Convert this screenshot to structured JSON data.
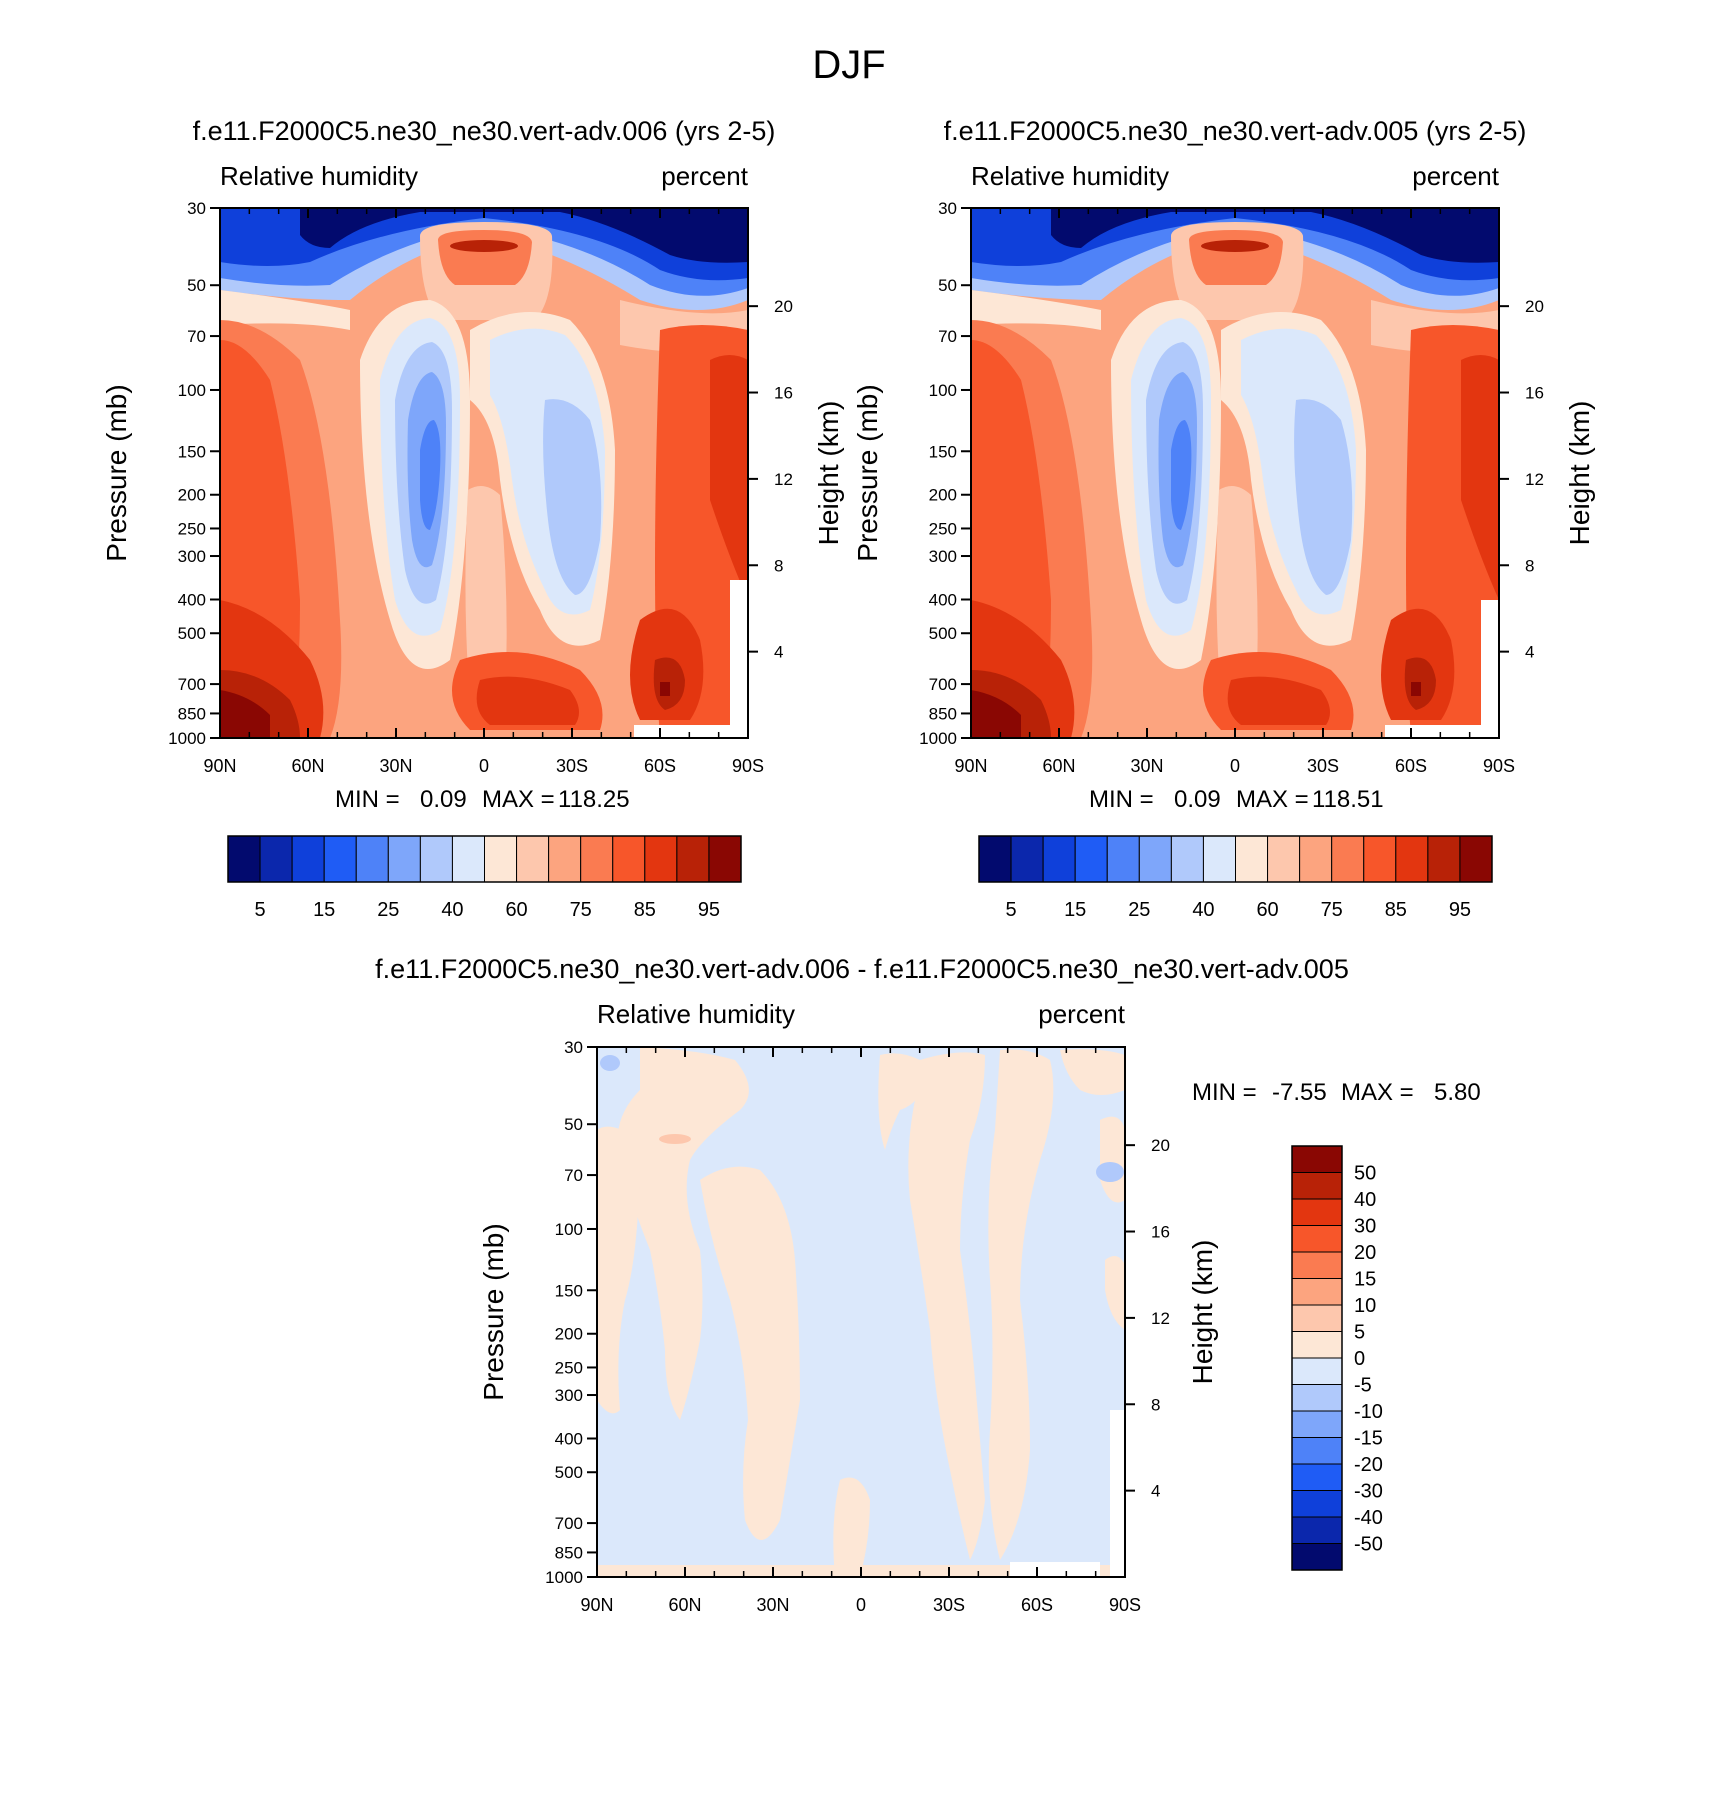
{
  "figure_title": "DJF",
  "chart_data": [
    {
      "type": "heatmap",
      "id": "p1",
      "title": "f.e11.F2000C5.ne30_ne30.vert-adv.006 (yrs 2-5)",
      "left_string": "Relative humidity",
      "right_string": "percent",
      "ylabel": "Pressure (mb)",
      "ylabel_right": "Height (km)",
      "xticks": [
        "90N",
        "60N",
        "30N",
        "0",
        "30S",
        "60S",
        "90S"
      ],
      "xrange": [
        90,
        -90
      ],
      "yticks": [
        "30",
        "50",
        "70",
        "100",
        "150",
        "200",
        "250",
        "300",
        "400",
        "500",
        "700",
        "850",
        "1000"
      ],
      "yrange_mb": [
        30,
        1000
      ],
      "height_ticks": [
        "20",
        "16",
        "12",
        "8",
        "4"
      ],
      "stats": {
        "min_label": "MIN =",
        "min": "0.09",
        "max_label": "MAX =",
        "max": "118.25"
      },
      "colorbar": {
        "orientation": "horizontal",
        "levels": [
          5,
          10,
          15,
          20,
          25,
          30,
          40,
          50,
          60,
          70,
          75,
          80,
          85,
          90,
          95
        ],
        "labels": [
          "5",
          "15",
          "25",
          "40",
          "60",
          "75",
          "85",
          "95"
        ],
        "colors": [
          "#020a6e",
          "#0b27ac",
          "#0f40da",
          "#1f5cf5",
          "#4e82f8",
          "#7ea6fa",
          "#b0c9fb",
          "#dbe8fb",
          "#fde7d6",
          "#fdc7ad",
          "#fca47f",
          "#fa7b51",
          "#f7562a",
          "#e33610",
          "#b82207",
          "#8a0703"
        ]
      }
    },
    {
      "type": "heatmap",
      "id": "p2",
      "title": "f.e11.F2000C5.ne30_ne30.vert-adv.005 (yrs 2-5)",
      "left_string": "Relative humidity",
      "right_string": "percent",
      "ylabel": "Pressure (mb)",
      "ylabel_right": "Height (km)",
      "xticks": [
        "90N",
        "60N",
        "30N",
        "0",
        "30S",
        "60S",
        "90S"
      ],
      "xrange": [
        90,
        -90
      ],
      "yticks": [
        "30",
        "50",
        "70",
        "100",
        "150",
        "200",
        "250",
        "300",
        "400",
        "500",
        "700",
        "850",
        "1000"
      ],
      "yrange_mb": [
        30,
        1000
      ],
      "height_ticks": [
        "20",
        "16",
        "12",
        "8",
        "4"
      ],
      "stats": {
        "min_label": "MIN =",
        "min": "0.09",
        "max_label": "MAX =",
        "max": "118.51"
      },
      "colorbar": {
        "orientation": "horizontal",
        "levels": [
          5,
          10,
          15,
          20,
          25,
          30,
          40,
          50,
          60,
          70,
          75,
          80,
          85,
          90,
          95
        ],
        "labels": [
          "5",
          "15",
          "25",
          "40",
          "60",
          "75",
          "85",
          "95"
        ],
        "colors": [
          "#020a6e",
          "#0b27ac",
          "#0f40da",
          "#1f5cf5",
          "#4e82f8",
          "#7ea6fa",
          "#b0c9fb",
          "#dbe8fb",
          "#fde7d6",
          "#fdc7ad",
          "#fca47f",
          "#fa7b51",
          "#f7562a",
          "#e33610",
          "#b82207",
          "#8a0703"
        ]
      }
    },
    {
      "type": "heatmap",
      "id": "p3",
      "title": "f.e11.F2000C5.ne30_ne30.vert-adv.006 - f.e11.F2000C5.ne30_ne30.vert-adv.005",
      "left_string": "Relative humidity",
      "right_string": "percent",
      "ylabel": "Pressure (mb)",
      "ylabel_right": "Height (km)",
      "xticks": [
        "90N",
        "60N",
        "30N",
        "0",
        "30S",
        "60S",
        "90S"
      ],
      "xrange": [
        90,
        -90
      ],
      "yticks": [
        "30",
        "50",
        "70",
        "100",
        "150",
        "200",
        "250",
        "300",
        "400",
        "500",
        "700",
        "850",
        "1000"
      ],
      "yrange_mb": [
        30,
        1000
      ],
      "height_ticks": [
        "20",
        "16",
        "12",
        "8",
        "4"
      ],
      "stats": {
        "min_label": "MIN =",
        "min": "-7.55",
        "max_label": "MAX =",
        "max": "5.80"
      },
      "colorbar": {
        "orientation": "vertical",
        "levels": [
          -50,
          -40,
          -30,
          -20,
          -15,
          -10,
          -5,
          0,
          5,
          10,
          15,
          20,
          30,
          40,
          50
        ],
        "labels": [
          "50",
          "40",
          "30",
          "20",
          "15",
          "10",
          "5",
          "0",
          "-5",
          "-10",
          "-15",
          "-20",
          "-30",
          "-40",
          "-50"
        ],
        "colors": [
          "#020a6e",
          "#0b27ac",
          "#0f40da",
          "#1f5cf5",
          "#4e82f8",
          "#7ea6fa",
          "#b0c9fb",
          "#dbe8fb",
          "#fde7d6",
          "#fdc7ad",
          "#fca47f",
          "#fa7b51",
          "#f7562a",
          "#e33610",
          "#b82207",
          "#8a0703"
        ]
      }
    }
  ]
}
